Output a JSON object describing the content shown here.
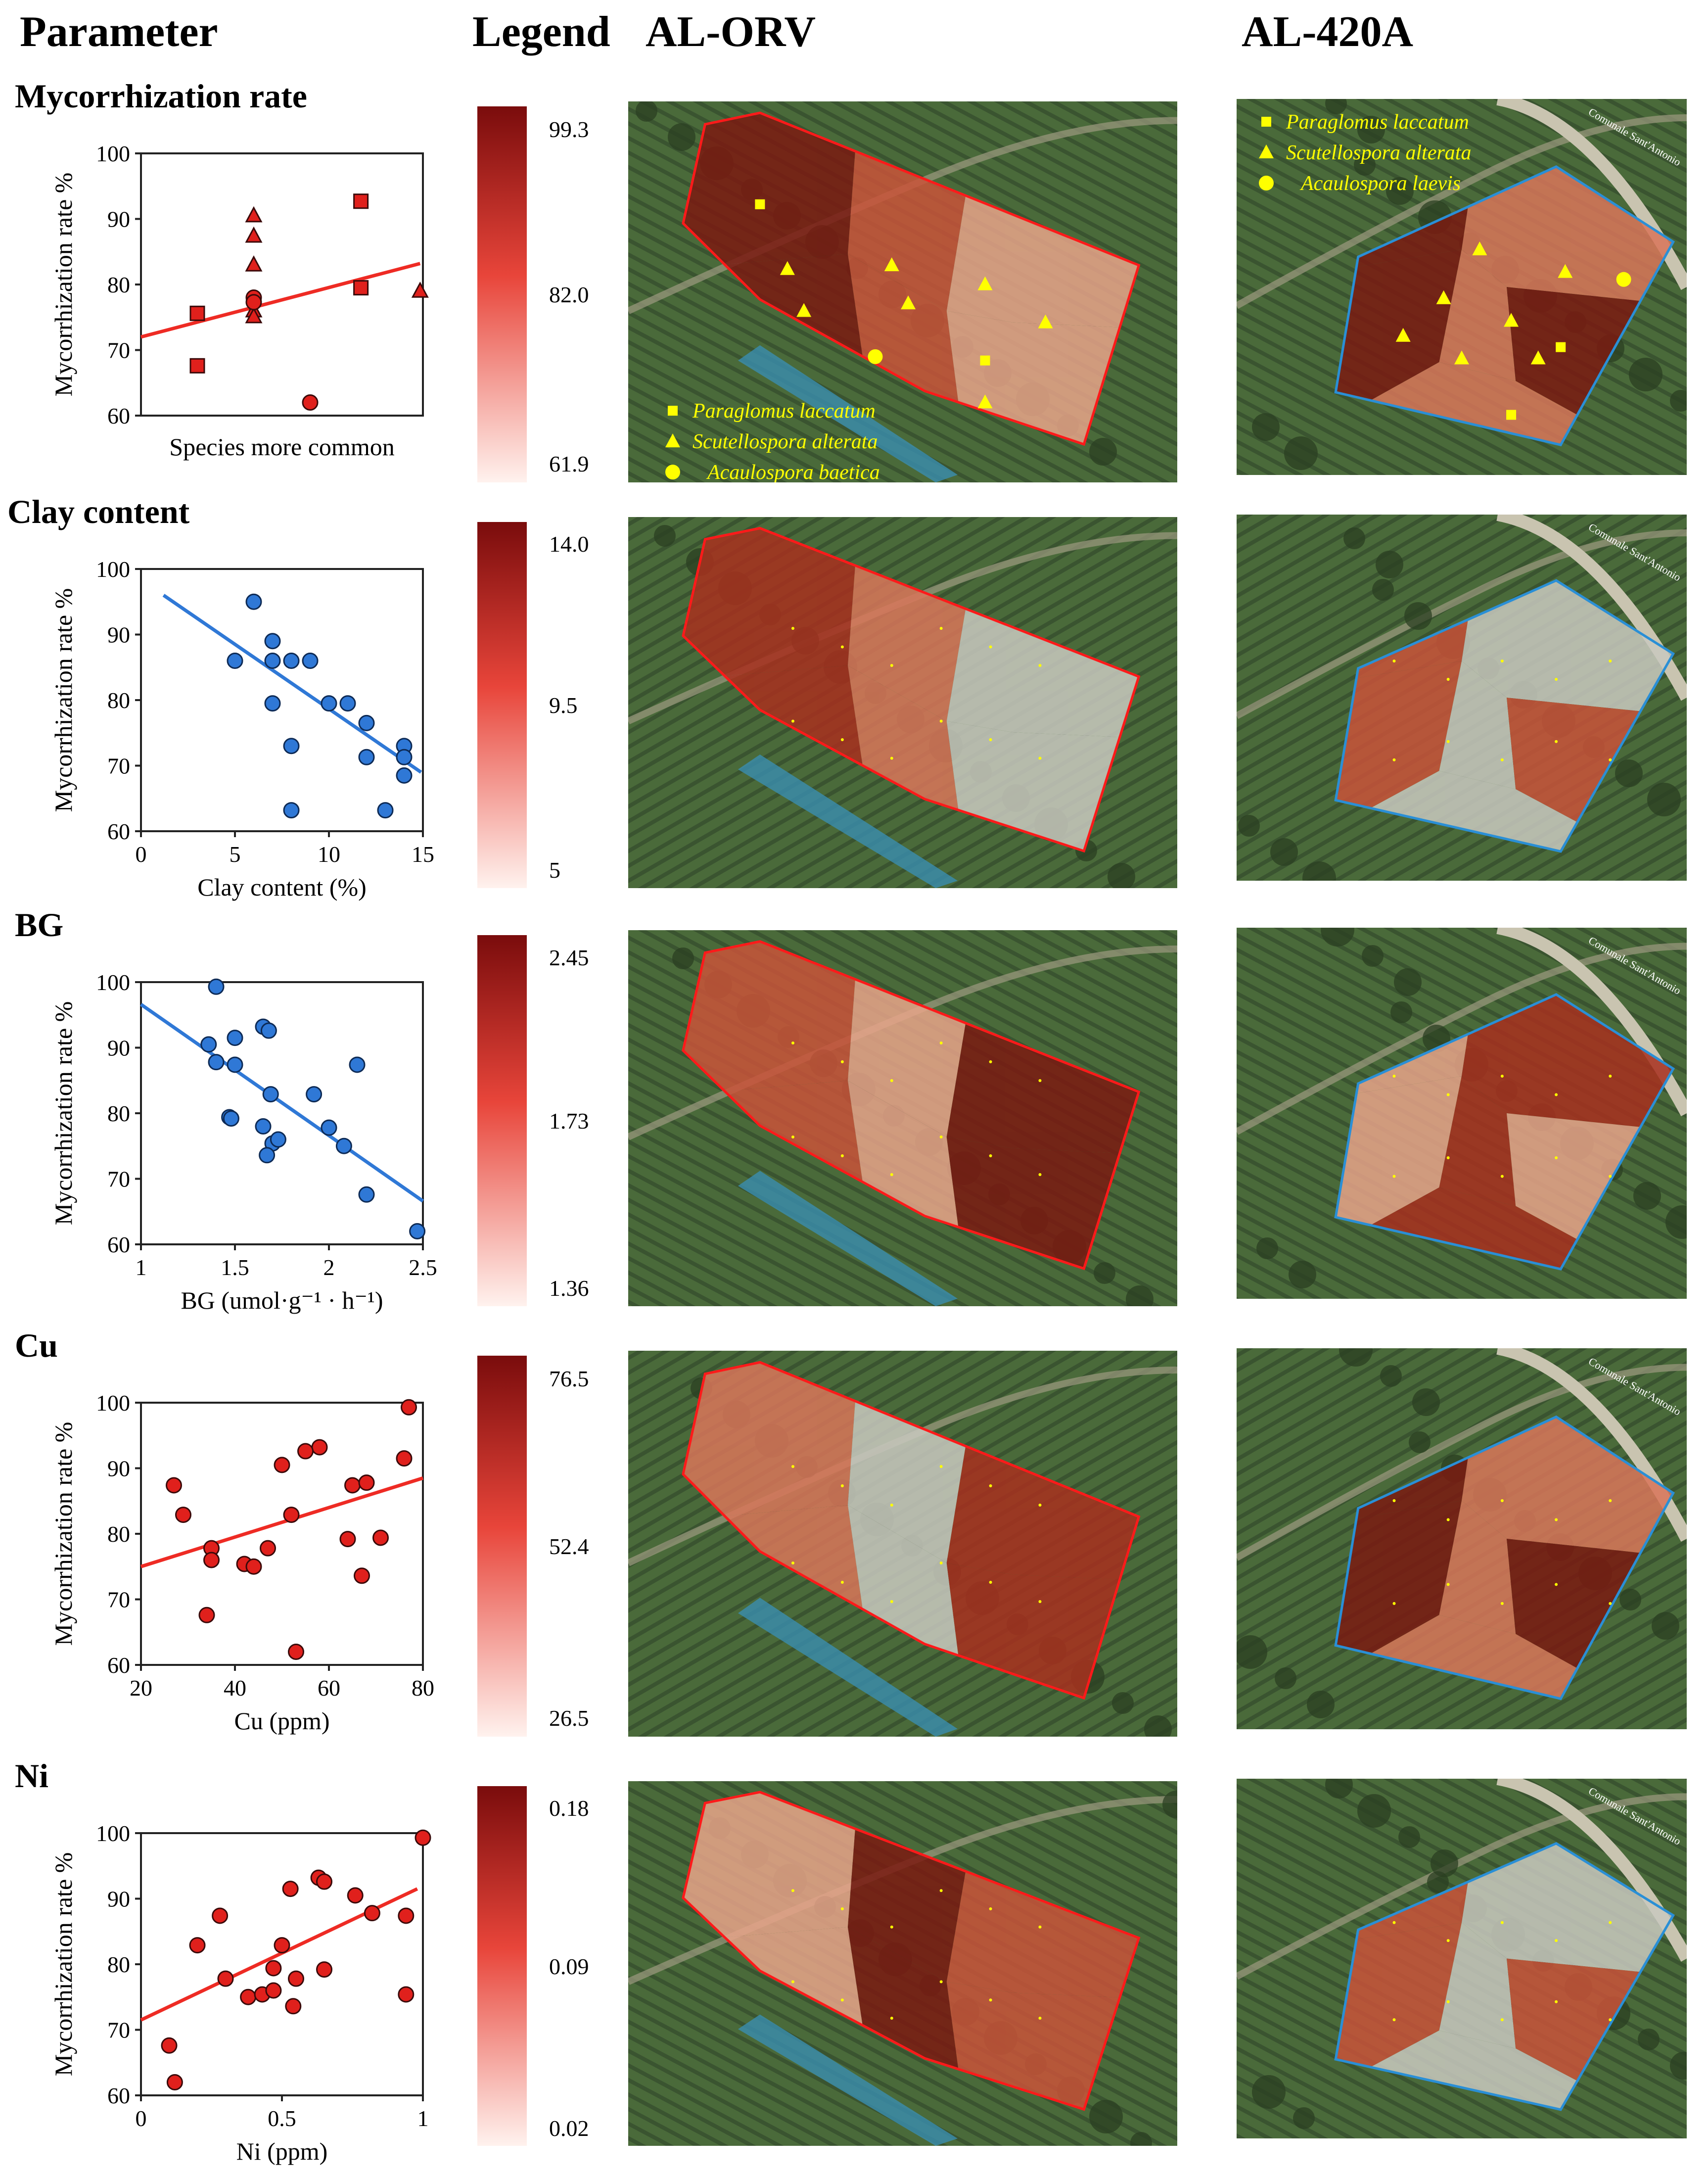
{
  "headers": {
    "parameter": "Parameter",
    "legend": "Legend",
    "site1": "AL-ORV",
    "site2": "AL-420A"
  },
  "road_label": "Comunale Sant'Antonio",
  "colors": {
    "red_marker": "#e0201c",
    "red_line": "#ee2b24",
    "blue_marker": "#2f78d6",
    "blue_line": "#2f78d6",
    "legend_dark": "#7a0c0c",
    "legend_mid": "#e8453a",
    "legend_light": "#fff2ee",
    "species_yellow": "#ffff00",
    "boundary_red": "#ff1a1a",
    "boundary_blue": "#2a8fd6"
  },
  "rows": [
    {
      "title": "Mycorrhization rate",
      "legend": [
        "99.3",
        "82.0",
        "61.9"
      ],
      "chart_data": {
        "type": "scatter",
        "title": "",
        "xlabel": "Species more common",
        "ylabel": "Mycorrhization rate %",
        "xlim": [
          0,
          10
        ],
        "ylim": [
          60,
          100
        ],
        "yticks": [
          "100",
          "90",
          "80",
          "70",
          "60"
        ],
        "xticks": [],
        "marker_color": "#e0201c",
        "series": [
          {
            "name": "Paraglomus laccatum",
            "marker": "square",
            "x": [
              2,
              2,
              7.8,
              7.8
            ],
            "y": [
              75.6,
              67.6,
              92.7,
              79.5
            ]
          },
          {
            "name": "Scutellospora alterata",
            "marker": "triangle",
            "x": [
              4,
              4,
              4,
              4,
              4,
              9.9
            ],
            "y": [
              90.5,
              87.4,
              83,
              76,
              75.1,
              79
            ]
          },
          {
            "name": "Acaulospora",
            "marker": "circle",
            "x": [
              4,
              4,
              6
            ],
            "y": [
              78,
              77.3,
              62
            ]
          }
        ],
        "trend": {
          "x": [
            0,
            9.9
          ],
          "y": [
            72,
            83.2
          ]
        }
      },
      "maps": {
        "left_legend": [
          "Paraglomus laccatum",
          "Scutellospora alterata",
          "Acaulospora baetica"
        ],
        "right_legend": [
          "Paraglomus laccatum",
          "Scutellospora alterata",
          "Acaulospora laevis"
        ]
      }
    },
    {
      "title": "Clay content",
      "legend": [
        "14.0",
        "9.5",
        "5"
      ],
      "chart_data": {
        "type": "scatter",
        "title": "",
        "xlabel": "Clay content (%)",
        "ylabel": "Mycorrhization rate %",
        "xlim": [
          0,
          15
        ],
        "ylim": [
          60,
          100
        ],
        "yticks": [
          "100",
          "90",
          "80",
          "70",
          "60"
        ],
        "xticks": [
          "0",
          "5",
          "10",
          "15"
        ],
        "marker_color": "#2f78d6",
        "series": [
          {
            "name": "samples",
            "marker": "circle",
            "x": [
              6,
              7,
              5,
              7,
              8,
              9,
              7,
              10,
              11,
              12,
              8,
              12,
              14,
              14,
              14,
              13,
              8
            ],
            "y": [
              95,
              89,
              86,
              86,
              86,
              86,
              79.5,
              79.5,
              79.5,
              76.5,
              73,
              71.3,
              73,
              71.3,
              68.5,
              63.2,
              63.2
            ]
          }
        ],
        "trend": {
          "x": [
            1.2,
            14.9
          ],
          "y": [
            96,
            69
          ]
        }
      }
    },
    {
      "title": "BG",
      "legend": [
        "2.45",
        "1.73",
        "1.36"
      ],
      "chart_data": {
        "type": "scatter",
        "title": "",
        "xlabel": "BG (umol·g⁻¹ · h⁻¹)",
        "ylabel": "Mycorrhization rate %",
        "xlim": [
          1,
          2.5
        ],
        "ylim": [
          60,
          100
        ],
        "yticks": [
          "100",
          "90",
          "80",
          "70",
          "60"
        ],
        "xticks": [
          "1",
          "1.5",
          "2",
          "2.5"
        ],
        "marker_color": "#2f78d6",
        "series": [
          {
            "name": "samples",
            "marker": "circle",
            "x": [
              1.4,
              1.36,
              1.4,
              1.5,
              1.65,
              1.68,
              1.5,
              1.47,
              1.48,
              1.69,
              1.92,
              2.15,
              1.65,
              1.7,
              1.73,
              1.67,
              2.0,
              2.08,
              2.2,
              2.47
            ],
            "y": [
              99.3,
              90.5,
              87.8,
              91.5,
              93.2,
              92.6,
              87.4,
              79.4,
              79.2,
              82.9,
              82.9,
              87.4,
              78,
              75.4,
              76,
              73.6,
              77.8,
              75,
              67.6,
              62
            ]
          }
        ],
        "trend": {
          "x": [
            1,
            2.5
          ],
          "y": [
            96.6,
            66.6
          ]
        }
      }
    },
    {
      "title": "Cu",
      "legend": [
        "76.5",
        "52.4",
        "26.5"
      ],
      "chart_data": {
        "type": "scatter",
        "title": "",
        "xlabel": "Cu (ppm)",
        "ylabel": "Mycorrhization rate %",
        "xlim": [
          20,
          80
        ],
        "ylim": [
          60,
          100
        ],
        "yticks": [
          "100",
          "90",
          "80",
          "70",
          "60"
        ],
        "xticks": [
          "20",
          "40",
          "60",
          "80"
        ],
        "marker_color": "#e0201c",
        "series": [
          {
            "name": "samples",
            "marker": "circle",
            "x": [
              77,
              76,
              58,
              55,
              50,
              27,
              29,
              35,
              35,
              42,
              44,
              47,
              52,
              53,
              65,
              68,
              71,
              67,
              64,
              34
            ],
            "y": [
              99.3,
              91.5,
              93.2,
              92.6,
              90.5,
              87.4,
              82.9,
              77.8,
              76,
              75.4,
              75,
              77.8,
              82.9,
              62,
              87.4,
              87.8,
              79.4,
              73.6,
              79.2,
              67.6
            ]
          }
        ],
        "trend": {
          "x": [
            20,
            80
          ],
          "y": [
            75,
            88.5
          ]
        }
      }
    },
    {
      "title": "Ni",
      "legend": [
        "0.18",
        "0.09",
        "0.02"
      ],
      "chart_data": {
        "type": "scatter",
        "title": "",
        "xlabel": "Ni (ppm)",
        "ylabel": "Mycorrhization rate %",
        "xlim": [
          0,
          1
        ],
        "ylim": [
          60,
          100
        ],
        "yticks": [
          "100",
          "90",
          "80",
          "70",
          "60"
        ],
        "xticks": [
          "0",
          "0.5",
          "1"
        ],
        "marker_color": "#e0201c",
        "series": [
          {
            "name": "samples",
            "marker": "circle",
            "x": [
              1.0,
              0.63,
              0.65,
              0.53,
              0.76,
              0.82,
              0.28,
              0.94,
              0.2,
              0.5,
              0.3,
              0.38,
              0.43,
              0.47,
              0.55,
              0.65,
              0.54,
              0.47,
              0.94,
              0.1,
              0.12
            ],
            "y": [
              99.3,
              93.2,
              92.6,
              91.5,
              90.5,
              87.8,
              87.4,
              87.4,
              82.9,
              82.9,
              77.8,
              75,
              75.4,
              79.4,
              77.8,
              79.2,
              73.6,
              76,
              75.4,
              67.6,
              62
            ]
          }
        ],
        "trend": {
          "x": [
            0,
            0.98
          ],
          "y": [
            71.5,
            91.5
          ]
        }
      }
    }
  ]
}
